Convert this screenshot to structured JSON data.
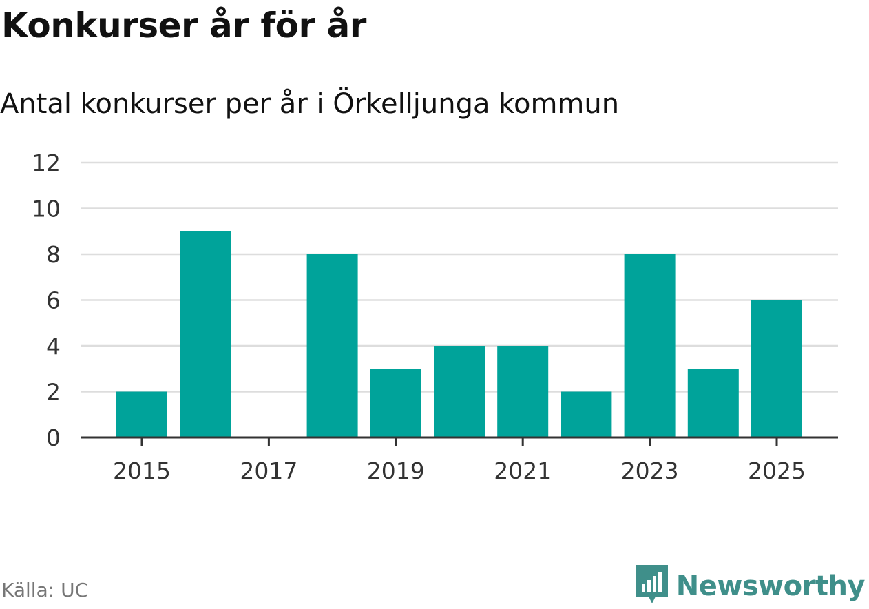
{
  "title": "Konkurser år för år",
  "subtitle": "Antal konkurser per år i Örkelljunga kommun",
  "source": "Källa: UC",
  "brand": {
    "name": "Newsworthy",
    "icon": "bar-chart-logo-icon"
  },
  "colors": {
    "bar": "#00a39a",
    "grid": "#dddddd",
    "axis": "#333333",
    "brand": "#3f8f8a"
  },
  "chart_data": {
    "type": "bar",
    "title": "Konkurser år för år",
    "subtitle": "Antal konkurser per år i Örkelljunga kommun",
    "categories": [
      2015,
      2016,
      2017,
      2018,
      2019,
      2020,
      2021,
      2022,
      2023,
      2024,
      2025
    ],
    "values": [
      2,
      9,
      0,
      8,
      3,
      4,
      4,
      2,
      8,
      3,
      6
    ],
    "x_tick_labels": [
      "2015",
      "2017",
      "2019",
      "2021",
      "2023",
      "2025"
    ],
    "y_ticks": [
      "0",
      "2",
      "4",
      "6",
      "8",
      "10",
      "12"
    ],
    "ylim": [
      0,
      12
    ],
    "grid": true,
    "xlabel": "",
    "ylabel": ""
  }
}
